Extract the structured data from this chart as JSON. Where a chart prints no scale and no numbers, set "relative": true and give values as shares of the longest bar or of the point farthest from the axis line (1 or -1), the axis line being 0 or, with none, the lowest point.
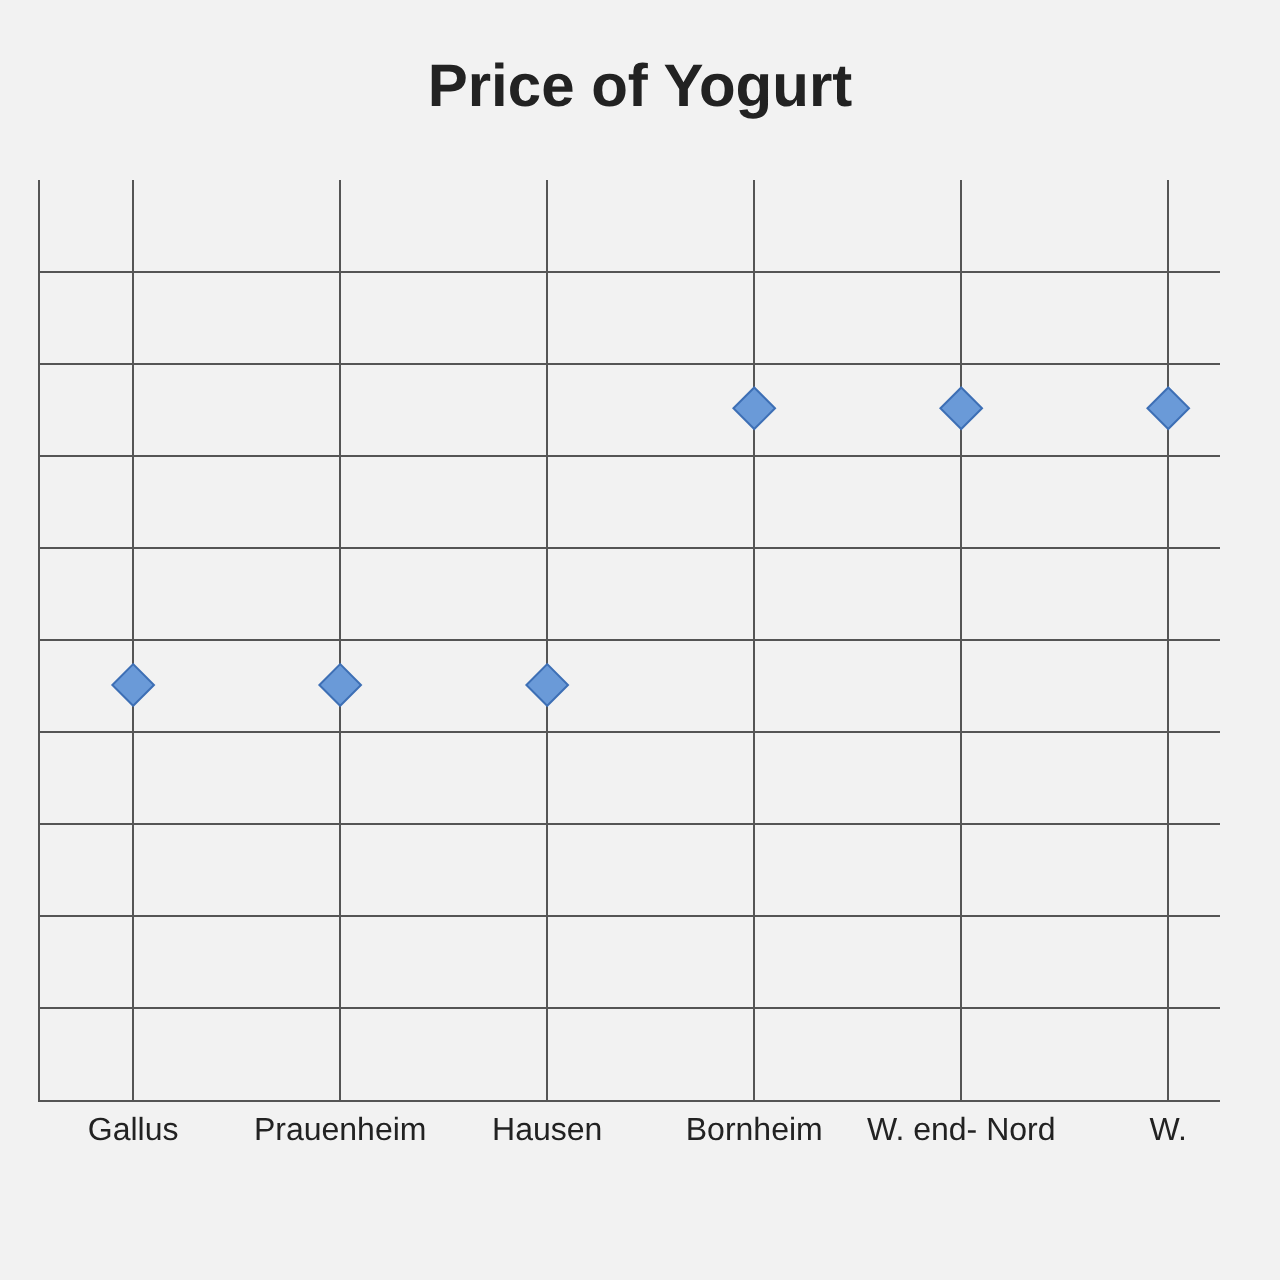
{
  "chart_data": {
    "type": "scatter",
    "title": "Price of Yogurt",
    "categories": [
      "Gallus",
      "Prauenheim",
      "Hausen",
      "Bornheim",
      "W. end- Nord",
      "W."
    ],
    "relative": true,
    "series": [
      {
        "color": "#6a9ad8",
        "values": [
          0.6,
          0.6,
          0.6,
          1,
          1,
          1
        ]
      }
    ],
    "marker": "diamond",
    "grid": true
  }
}
